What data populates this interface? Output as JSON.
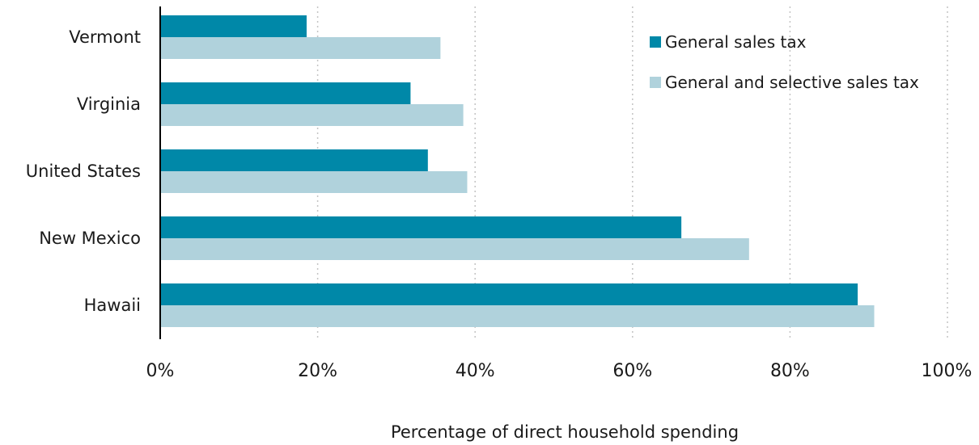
{
  "chart_data": {
    "type": "bar",
    "orientation": "horizontal",
    "categories": [
      "Vermont",
      "Virginia",
      "United States",
      "New Mexico",
      "Hawaii"
    ],
    "series": [
      {
        "name": "General sales tax",
        "color": "#0088a8",
        "values": [
          18.6,
          31.8,
          34.0,
          66.2,
          88.6
        ]
      },
      {
        "name": "General and selective sales tax",
        "color": "#b0d2dc",
        "values": [
          35.6,
          38.5,
          39.0,
          74.8,
          90.7
        ]
      }
    ],
    "xlabel": "Percentage of direct household spending",
    "ylabel": "",
    "xlim": [
      0,
      100
    ],
    "xticks": [
      "0%",
      "20%",
      "40%",
      "60%",
      "80%",
      "100%"
    ],
    "grid": "vertical dotted",
    "legend": "top-right"
  }
}
